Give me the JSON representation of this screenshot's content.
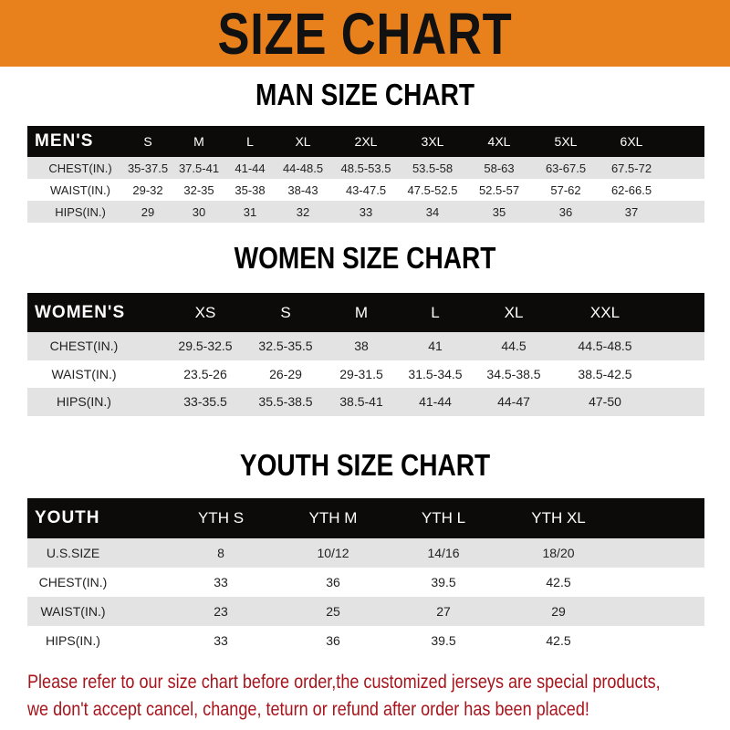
{
  "banner_title": "SIZE CHART",
  "men": {
    "title": "MAN SIZE CHART",
    "header": [
      "MEN'S",
      "S",
      "M",
      "L",
      "XL",
      "2XL",
      "3XL",
      "4XL",
      "5XL",
      "6XL"
    ],
    "rows": [
      [
        "CHEST(IN.)",
        "35-37.5",
        "37.5-41",
        "41-44",
        "44-48.5",
        "48.5-53.5",
        "53.5-58",
        "58-63",
        "63-67.5",
        "67.5-72"
      ],
      [
        "WAIST(IN.)",
        "29-32",
        "32-35",
        "35-38",
        "38-43",
        "43-47.5",
        "47.5-52.5",
        "52.5-57",
        "57-62",
        "62-66.5"
      ],
      [
        "HIPS(IN.)",
        "29",
        "30",
        "31",
        "32",
        "33",
        "34",
        "35",
        "36",
        "37"
      ]
    ]
  },
  "women": {
    "title": "WOMEN SIZE CHART",
    "header": [
      "WOMEN'S",
      "XS",
      "S",
      "M",
      "L",
      "XL",
      "XXL"
    ],
    "rows": [
      [
        "CHEST(IN.)",
        "29.5-32.5",
        "32.5-35.5",
        "38",
        "41",
        "44.5",
        "44.5-48.5"
      ],
      [
        "WAIST(IN.)",
        "23.5-26",
        "26-29",
        "29-31.5",
        "31.5-34.5",
        "34.5-38.5",
        "38.5-42.5"
      ],
      [
        "HIPS(IN.)",
        "33-35.5",
        "35.5-38.5",
        "38.5-41",
        "41-44",
        "44-47",
        "47-50"
      ]
    ]
  },
  "youth": {
    "title": "YOUTH SIZE CHART",
    "header": [
      "YOUTH",
      "YTH S",
      "YTH M",
      "YTH L",
      "YTH XL"
    ],
    "rows": [
      [
        "U.S.SIZE",
        "8",
        "10/12",
        "14/16",
        "18/20"
      ],
      [
        "CHEST(IN.)",
        "33",
        "36",
        "39.5",
        "42.5"
      ],
      [
        "WAIST(IN.)",
        "23",
        "25",
        "27",
        "29"
      ],
      [
        "HIPS(IN.)",
        "33",
        "36",
        "39.5",
        "42.5"
      ]
    ]
  },
  "notice": [
    "Please refer to our size chart before order,the customized jerseys are special products,",
    "we don't accept cancel, change, teturn or refund after order has been placed!"
  ],
  "colors": {
    "banner": "#E8801C",
    "header_row": "#0D0A0A",
    "notice": "#A8141C",
    "stripe": "#E3E3E3"
  }
}
